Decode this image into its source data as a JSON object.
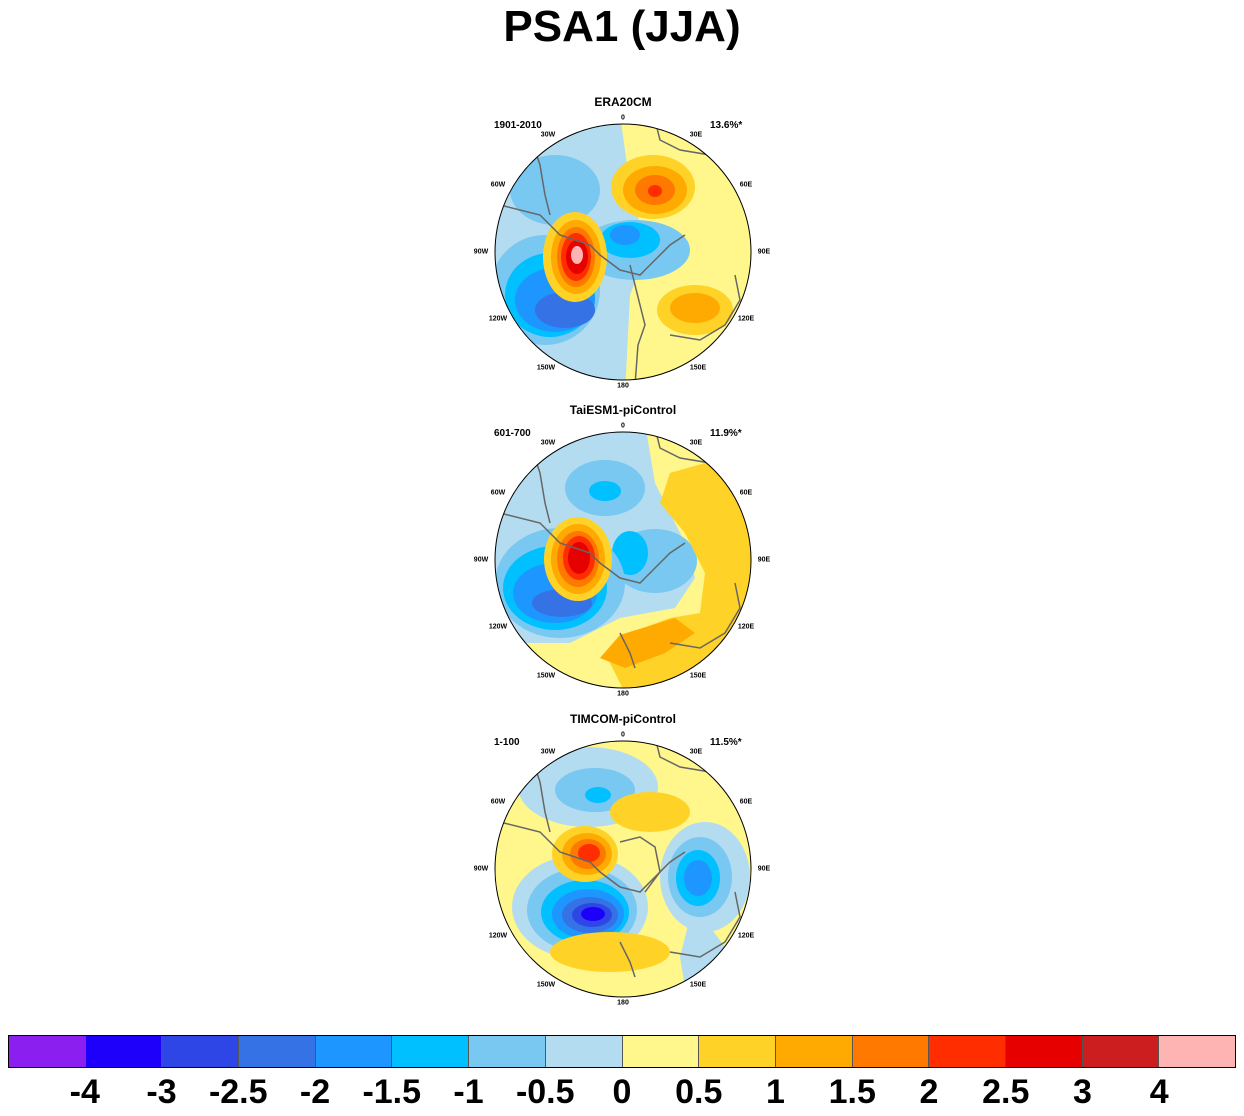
{
  "title": "PSA1 (JJA)",
  "panels": [
    {
      "name": "ERA20CM",
      "period": "1901-2010",
      "variance": "13.6%*"
    },
    {
      "name": "TaiESM1-piControl",
      "period": "601-700",
      "variance": "11.9%*"
    },
    {
      "name": "TIMCOM-piControl",
      "period": "1-100",
      "variance": "11.5%*"
    }
  ],
  "longitude_labels": [
    "0",
    "30E",
    "60E",
    "90E",
    "120E",
    "150E",
    "180",
    "150W",
    "120W",
    "90W",
    "60W",
    "30W"
  ],
  "colorbar": {
    "colors": [
      "#8a1ff0",
      "#1e00fa",
      "#2e46e6",
      "#3472e6",
      "#1e96ff",
      "#00c0ff",
      "#78c8f2",
      "#b4dcf0",
      "#fff68c",
      "#ffd228",
      "#ffaa00",
      "#ff7800",
      "#ff2d00",
      "#e60000",
      "#cc1e1e",
      "#ffb4b4"
    ],
    "labels": [
      "-4",
      "-3",
      "-2.5",
      "-2",
      "-1.5",
      "-1",
      "-0.5",
      "0",
      "0.5",
      "1",
      "1.5",
      "2",
      "2.5",
      "3",
      "4"
    ]
  }
}
